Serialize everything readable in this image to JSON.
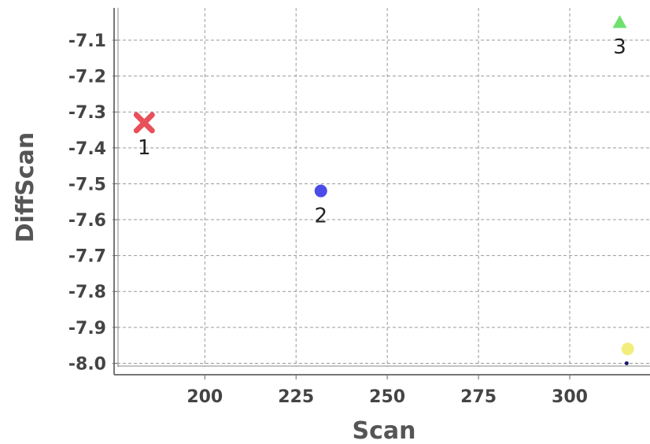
{
  "chart_data": {
    "type": "scatter",
    "title": "",
    "xlabel": "Scan",
    "ylabel": "DiffScan",
    "xlim": [
      176,
      322
    ],
    "ylim": [
      -8.01,
      -7.01
    ],
    "xticks": [
      200,
      225,
      250,
      275,
      300
    ],
    "xtick_labels": [
      "200",
      "225",
      "250",
      "275",
      "300"
    ],
    "yticks": [
      -7.1,
      -7.2,
      -7.3,
      -7.4,
      -7.5,
      -7.6,
      -7.7,
      -7.8,
      -7.9,
      -8.0
    ],
    "ytick_labels": [
      "-7.1",
      "-7.2",
      "-7.3",
      "-7.4",
      "-7.5",
      "-7.6",
      "-7.7",
      "-7.8",
      "-7.9",
      "-8.0"
    ],
    "grid": true,
    "points": [
      {
        "label": "1",
        "x": 183.4,
        "y": -7.33,
        "marker": "x",
        "color": "#e8505a"
      },
      {
        "label": "2",
        "x": 231.8,
        "y": -7.52,
        "marker": "circle",
        "color": "#4b4bea"
      },
      {
        "label": "3",
        "x": 313.7,
        "y": -7.05,
        "marker": "triangle",
        "color": "#6ee06e"
      },
      {
        "label": "",
        "x": 315.9,
        "y": -7.96,
        "marker": "circle",
        "color": "#f3ee7c"
      },
      {
        "label": "",
        "x": 315.6,
        "y": -8.0,
        "marker": "dot",
        "color": "#1a1a6a"
      }
    ]
  }
}
